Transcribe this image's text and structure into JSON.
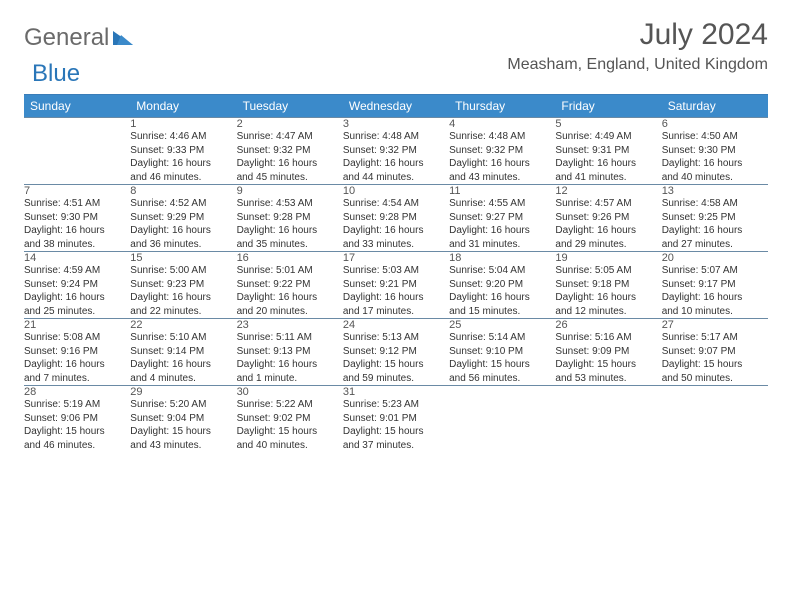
{
  "brand": {
    "part1": "General",
    "part2": "Blue",
    "logo_color": "#2a76b8"
  },
  "title": "July 2024",
  "location": "Measham, England, United Kingdom",
  "colors": {
    "header_bg": "#3b8aca",
    "header_text": "#ffffff",
    "daynum_bg": "#eceded",
    "rule": "#6a8aa5",
    "top_rule": "#3a7db8",
    "text": "#333333",
    "muted": "#555555"
  },
  "weekdays": [
    "Sunday",
    "Monday",
    "Tuesday",
    "Wednesday",
    "Thursday",
    "Friday",
    "Saturday"
  ],
  "weeks": [
    [
      null,
      {
        "n": "1",
        "sr": "Sunrise: 4:46 AM",
        "ss": "Sunset: 9:33 PM",
        "d1": "Daylight: 16 hours",
        "d2": "and 46 minutes."
      },
      {
        "n": "2",
        "sr": "Sunrise: 4:47 AM",
        "ss": "Sunset: 9:32 PM",
        "d1": "Daylight: 16 hours",
        "d2": "and 45 minutes."
      },
      {
        "n": "3",
        "sr": "Sunrise: 4:48 AM",
        "ss": "Sunset: 9:32 PM",
        "d1": "Daylight: 16 hours",
        "d2": "and 44 minutes."
      },
      {
        "n": "4",
        "sr": "Sunrise: 4:48 AM",
        "ss": "Sunset: 9:32 PM",
        "d1": "Daylight: 16 hours",
        "d2": "and 43 minutes."
      },
      {
        "n": "5",
        "sr": "Sunrise: 4:49 AM",
        "ss": "Sunset: 9:31 PM",
        "d1": "Daylight: 16 hours",
        "d2": "and 41 minutes."
      },
      {
        "n": "6",
        "sr": "Sunrise: 4:50 AM",
        "ss": "Sunset: 9:30 PM",
        "d1": "Daylight: 16 hours",
        "d2": "and 40 minutes."
      }
    ],
    [
      {
        "n": "7",
        "sr": "Sunrise: 4:51 AM",
        "ss": "Sunset: 9:30 PM",
        "d1": "Daylight: 16 hours",
        "d2": "and 38 minutes."
      },
      {
        "n": "8",
        "sr": "Sunrise: 4:52 AM",
        "ss": "Sunset: 9:29 PM",
        "d1": "Daylight: 16 hours",
        "d2": "and 36 minutes."
      },
      {
        "n": "9",
        "sr": "Sunrise: 4:53 AM",
        "ss": "Sunset: 9:28 PM",
        "d1": "Daylight: 16 hours",
        "d2": "and 35 minutes."
      },
      {
        "n": "10",
        "sr": "Sunrise: 4:54 AM",
        "ss": "Sunset: 9:28 PM",
        "d1": "Daylight: 16 hours",
        "d2": "and 33 minutes."
      },
      {
        "n": "11",
        "sr": "Sunrise: 4:55 AM",
        "ss": "Sunset: 9:27 PM",
        "d1": "Daylight: 16 hours",
        "d2": "and 31 minutes."
      },
      {
        "n": "12",
        "sr": "Sunrise: 4:57 AM",
        "ss": "Sunset: 9:26 PM",
        "d1": "Daylight: 16 hours",
        "d2": "and 29 minutes."
      },
      {
        "n": "13",
        "sr": "Sunrise: 4:58 AM",
        "ss": "Sunset: 9:25 PM",
        "d1": "Daylight: 16 hours",
        "d2": "and 27 minutes."
      }
    ],
    [
      {
        "n": "14",
        "sr": "Sunrise: 4:59 AM",
        "ss": "Sunset: 9:24 PM",
        "d1": "Daylight: 16 hours",
        "d2": "and 25 minutes."
      },
      {
        "n": "15",
        "sr": "Sunrise: 5:00 AM",
        "ss": "Sunset: 9:23 PM",
        "d1": "Daylight: 16 hours",
        "d2": "and 22 minutes."
      },
      {
        "n": "16",
        "sr": "Sunrise: 5:01 AM",
        "ss": "Sunset: 9:22 PM",
        "d1": "Daylight: 16 hours",
        "d2": "and 20 minutes."
      },
      {
        "n": "17",
        "sr": "Sunrise: 5:03 AM",
        "ss": "Sunset: 9:21 PM",
        "d1": "Daylight: 16 hours",
        "d2": "and 17 minutes."
      },
      {
        "n": "18",
        "sr": "Sunrise: 5:04 AM",
        "ss": "Sunset: 9:20 PM",
        "d1": "Daylight: 16 hours",
        "d2": "and 15 minutes."
      },
      {
        "n": "19",
        "sr": "Sunrise: 5:05 AM",
        "ss": "Sunset: 9:18 PM",
        "d1": "Daylight: 16 hours",
        "d2": "and 12 minutes."
      },
      {
        "n": "20",
        "sr": "Sunrise: 5:07 AM",
        "ss": "Sunset: 9:17 PM",
        "d1": "Daylight: 16 hours",
        "d2": "and 10 minutes."
      }
    ],
    [
      {
        "n": "21",
        "sr": "Sunrise: 5:08 AM",
        "ss": "Sunset: 9:16 PM",
        "d1": "Daylight: 16 hours",
        "d2": "and 7 minutes."
      },
      {
        "n": "22",
        "sr": "Sunrise: 5:10 AM",
        "ss": "Sunset: 9:14 PM",
        "d1": "Daylight: 16 hours",
        "d2": "and 4 minutes."
      },
      {
        "n": "23",
        "sr": "Sunrise: 5:11 AM",
        "ss": "Sunset: 9:13 PM",
        "d1": "Daylight: 16 hours",
        "d2": "and 1 minute."
      },
      {
        "n": "24",
        "sr": "Sunrise: 5:13 AM",
        "ss": "Sunset: 9:12 PM",
        "d1": "Daylight: 15 hours",
        "d2": "and 59 minutes."
      },
      {
        "n": "25",
        "sr": "Sunrise: 5:14 AM",
        "ss": "Sunset: 9:10 PM",
        "d1": "Daylight: 15 hours",
        "d2": "and 56 minutes."
      },
      {
        "n": "26",
        "sr": "Sunrise: 5:16 AM",
        "ss": "Sunset: 9:09 PM",
        "d1": "Daylight: 15 hours",
        "d2": "and 53 minutes."
      },
      {
        "n": "27",
        "sr": "Sunrise: 5:17 AM",
        "ss": "Sunset: 9:07 PM",
        "d1": "Daylight: 15 hours",
        "d2": "and 50 minutes."
      }
    ],
    [
      {
        "n": "28",
        "sr": "Sunrise: 5:19 AM",
        "ss": "Sunset: 9:06 PM",
        "d1": "Daylight: 15 hours",
        "d2": "and 46 minutes."
      },
      {
        "n": "29",
        "sr": "Sunrise: 5:20 AM",
        "ss": "Sunset: 9:04 PM",
        "d1": "Daylight: 15 hours",
        "d2": "and 43 minutes."
      },
      {
        "n": "30",
        "sr": "Sunrise: 5:22 AM",
        "ss": "Sunset: 9:02 PM",
        "d1": "Daylight: 15 hours",
        "d2": "and 40 minutes."
      },
      {
        "n": "31",
        "sr": "Sunrise: 5:23 AM",
        "ss": "Sunset: 9:01 PM",
        "d1": "Daylight: 15 hours",
        "d2": "and 37 minutes."
      },
      null,
      null,
      null
    ]
  ]
}
